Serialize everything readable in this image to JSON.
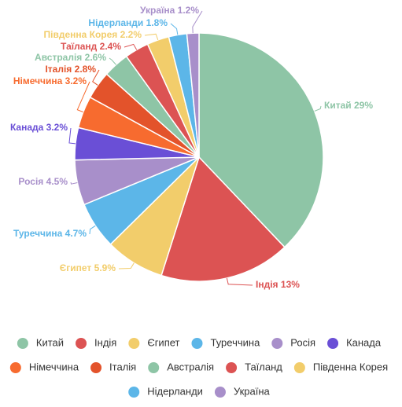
{
  "chart_data": {
    "type": "pie",
    "categories": [
      "Китай",
      "Індія",
      "Єгипет",
      "Туреччина",
      "Росія",
      "Канада",
      "Німеччина",
      "Італія",
      "Австралія",
      "Таїланд",
      "Південна Корея",
      "Нідерланди",
      "Україна"
    ],
    "values": [
      29,
      13,
      5.9,
      4.7,
      4.5,
      3.2,
      3.2,
      2.8,
      2.6,
      2.4,
      2.2,
      1.8,
      1.2
    ],
    "value_labels": [
      "29%",
      "13%",
      "5.9%",
      "4.7%",
      "4.5%",
      "3.2%",
      "3.2%",
      "2.8%",
      "2.6%",
      "2.4%",
      "2.2%",
      "1.8%",
      "1.2%"
    ],
    "colors": [
      "#8ec5a6",
      "#dc5353",
      "#f2cd6b",
      "#5cb6e8",
      "#a88fca",
      "#6a4fd6",
      "#f76b2f",
      "#e3532b",
      "#8ec5a6",
      "#dc5353",
      "#f2cd6b",
      "#5cb6e8",
      "#a88fca"
    ],
    "legend": "bottom"
  }
}
